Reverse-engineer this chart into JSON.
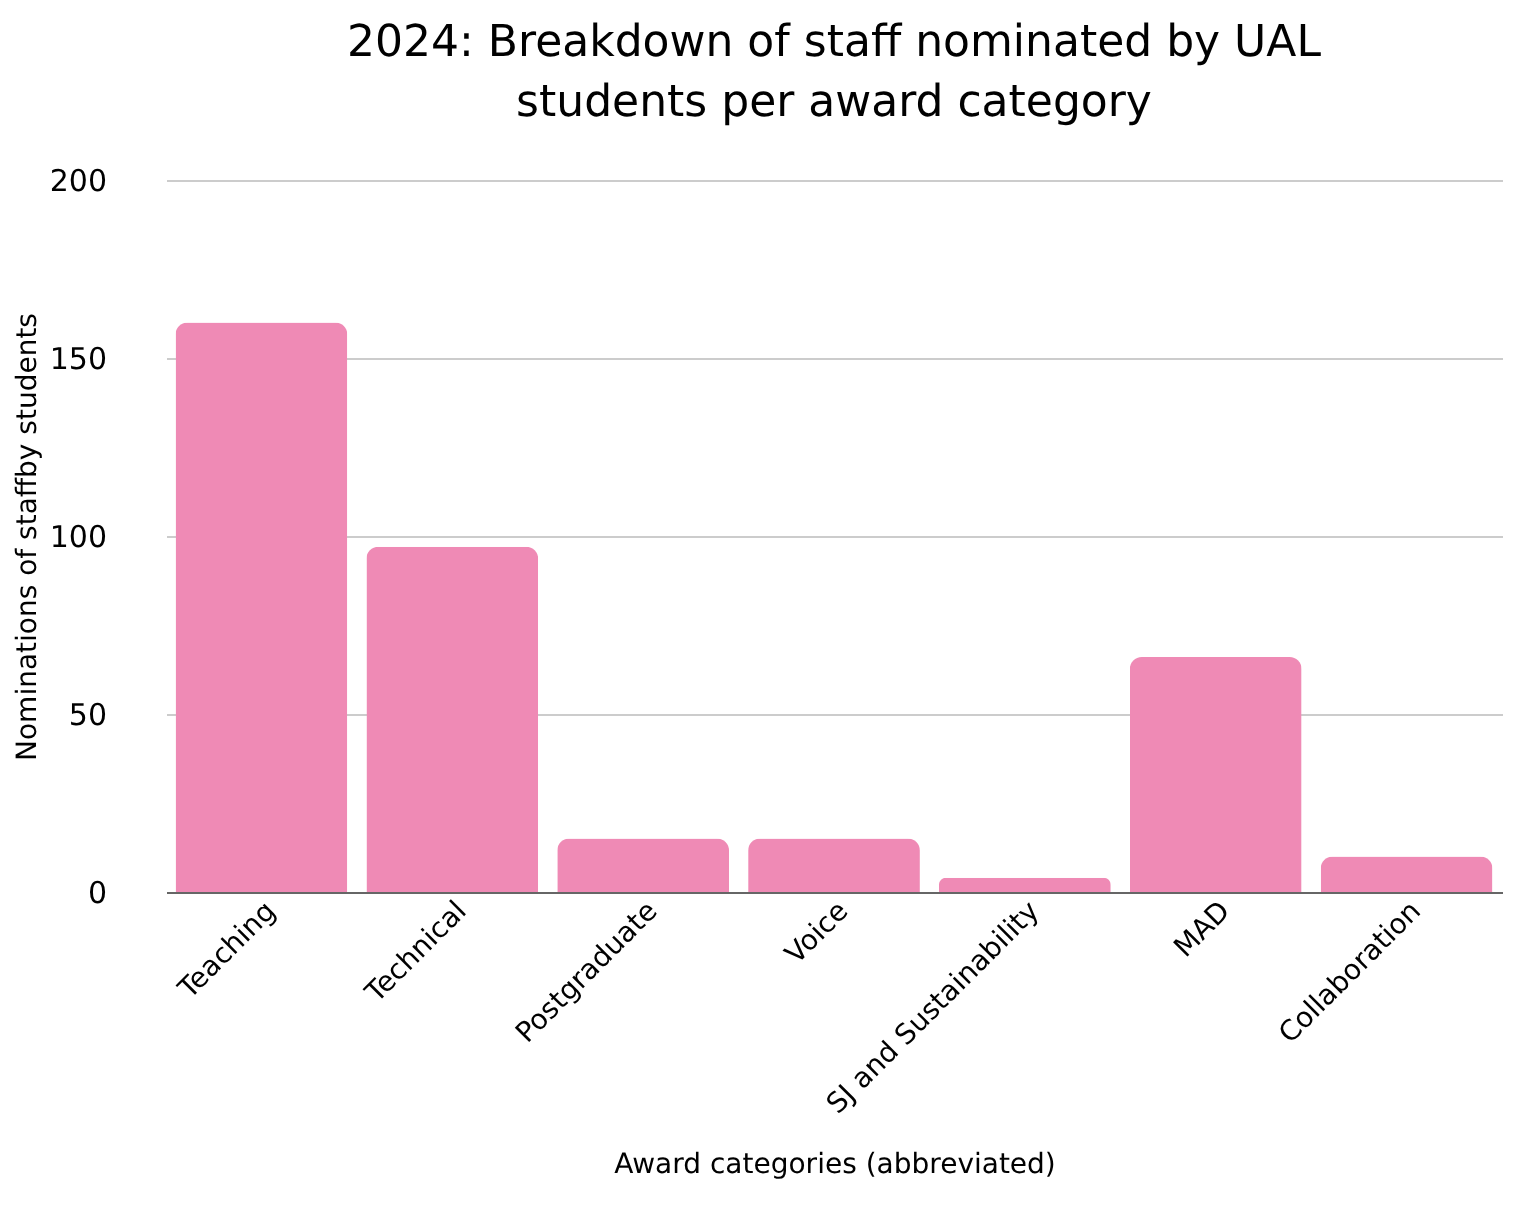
{
  "chart_data": {
    "type": "bar",
    "title": "2024: Breakdown of staff nominated by UAL students per award category",
    "xlabel": "Award categories (abbreviated)",
    "ylabel": "Nominations of staffby students",
    "categories": [
      "Teaching",
      "Technical",
      "Postgraduate",
      "Voice",
      "SJ and Sustainability",
      "MAD",
      "Collaboration"
    ],
    "values": [
      160,
      97,
      15,
      15,
      4,
      66,
      10
    ],
    "color": "#ef8ab5",
    "ylim": [
      0,
      200
    ],
    "yticks": [
      0,
      50,
      100,
      150,
      200
    ],
    "grid": "y"
  }
}
